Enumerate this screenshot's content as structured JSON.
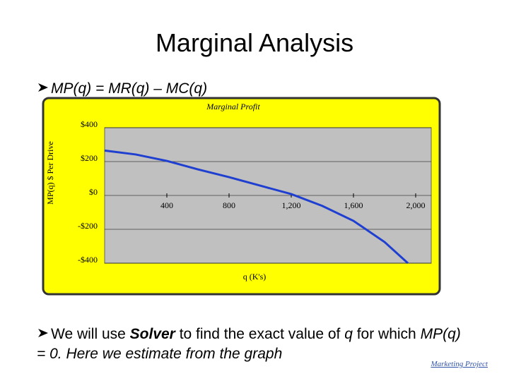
{
  "title": "Marginal Analysis",
  "bullet_1": "MP(q) = MR(q) – MC(q)",
  "bullet_2": [
    "We will use ",
    "Solver",
    " to find the exact value of ",
    "q",
    " for which ",
    "MP(q) = 0. Here we estimate from the graph"
  ],
  "footer": "Marketing Project",
  "chart_data": {
    "type": "line",
    "title": "Marginal Profit",
    "x_label": "q (K's)",
    "y_label": "MP(q) $ Per Drive",
    "x": [
      0,
      200,
      400,
      600,
      800,
      1000,
      1200,
      1400,
      1600,
      1800,
      1950
    ],
    "series": [
      {
        "name": "MP(q)",
        "color": "#1f3fd0",
        "values": [
          265,
          242,
          204,
          154,
          108,
          58,
          8,
          -62,
          -150,
          -275,
          -400
        ]
      }
    ],
    "xlim": [
      0,
      2100
    ],
    "ylim": [
      -400,
      400
    ],
    "xticks": [
      400,
      800,
      {
        "value": 1200,
        "label": "1,200"
      },
      {
        "value": 1600,
        "label": "1,600"
      },
      {
        "value": 2000,
        "label": "2,000"
      }
    ],
    "yticks": [
      {
        "value": 400,
        "label": "$400"
      },
      {
        "value": 200,
        "label": "$200"
      },
      {
        "value": 0,
        "label": "$0"
      },
      {
        "value": -200,
        "label": "-$200"
      },
      {
        "value": -400,
        "label": "-$400"
      }
    ],
    "grid": true,
    "background": "#ffff00",
    "plot_background": "#c0c0c0"
  }
}
